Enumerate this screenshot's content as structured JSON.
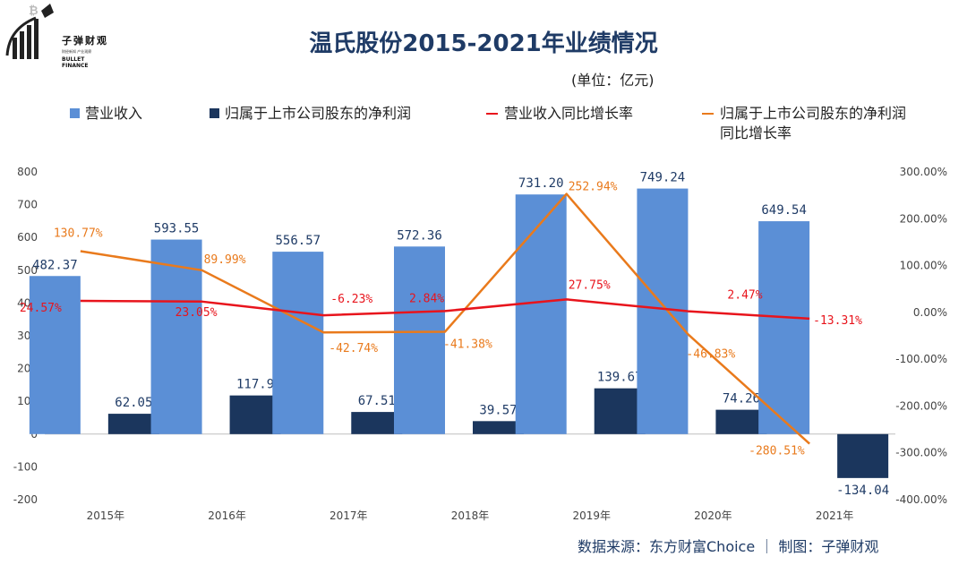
{
  "header": {
    "title": "温氏股份2015-2021年业绩情况",
    "unit": "(单位：亿元)"
  },
  "logo": {
    "cn": "子弹财观",
    "sub": "财经新知 产业观察",
    "en": "BULLET FINANCE"
  },
  "footer": {
    "source": "数据来源：东方财富Choice ｜ 制图：子弹财观"
  },
  "colors": {
    "revenue_bar": "#5b8fd6",
    "profit_bar": "#1b365d",
    "revenue_growth_line": "#e8141c",
    "profit_growth_line": "#e97a1c"
  },
  "chart_data": {
    "type": "bar",
    "categories": [
      "2015年",
      "2016年",
      "2017年",
      "2018年",
      "2019年",
      "2020年",
      "2021年"
    ],
    "series": [
      {
        "name": "营业收入",
        "type": "bar",
        "axis": "left",
        "values": [
          482.37,
          593.55,
          556.57,
          572.36,
          731.2,
          749.24,
          649.54
        ],
        "labels": [
          "482.37",
          "593.55",
          "556.57",
          "572.36",
          "731.20",
          "749.24",
          "649.54"
        ]
      },
      {
        "name": "归属于上市公司股东的净利润",
        "type": "bar",
        "axis": "left",
        "values": [
          62.05,
          117.9,
          67.51,
          39.57,
          139.67,
          74.26,
          -134.04
        ],
        "labels": [
          "62.05",
          "117.9",
          "67.51",
          "39.57",
          "139.67",
          "74.26",
          "-134.04"
        ]
      },
      {
        "name": "营业收入同比增长率",
        "type": "line",
        "axis": "right",
        "values": [
          24.57,
          23.05,
          -6.23,
          2.84,
          27.75,
          2.47,
          -13.31
        ],
        "labels": [
          "24.57%",
          "23.05%",
          "-6.23%",
          "2.84%",
          "27.75%",
          "2.47%",
          "-13.31%"
        ]
      },
      {
        "name": "归属于上市公司股东的净利润同比增长率",
        "legend_lines": [
          "归属于上市公司股东的净利润",
          "同比增长率"
        ],
        "type": "line",
        "axis": "right",
        "values": [
          130.77,
          89.99,
          -42.74,
          -41.38,
          252.94,
          -46.83,
          -280.51
        ],
        "labels": [
          "130.77%",
          "89.99%",
          "-42.74%",
          "-41.38%",
          "252.94%",
          "-46.83%",
          "-280.51%"
        ]
      }
    ],
    "ylim_left": [
      -200,
      800
    ],
    "yticks_left": [
      "800",
      "700",
      "600",
      "500",
      "400",
      "300",
      "200",
      "100",
      "0",
      "-100",
      "-200"
    ],
    "ylim_right": [
      -400,
      300
    ],
    "yticks_right": [
      "300.00%",
      "200.00%",
      "100.00%",
      "0.00%",
      "-100.00%",
      "-200.00%",
      "-300.00%",
      "-400.00%"
    ],
    "grid": false,
    "legend_position": "top"
  }
}
